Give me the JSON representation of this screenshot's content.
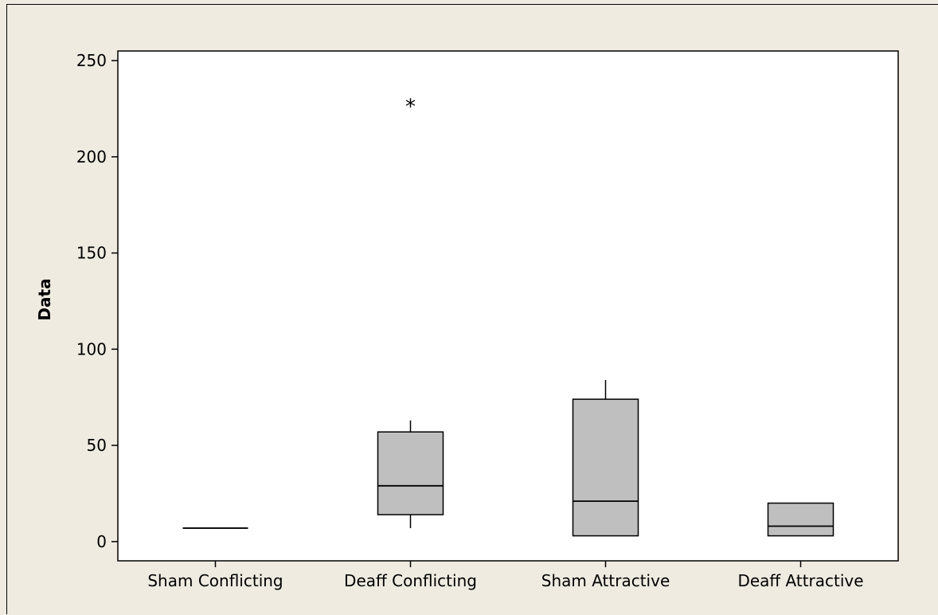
{
  "chart_data": {
    "type": "boxplot",
    "title": "",
    "xlabel": "",
    "ylabel": "Data",
    "ylim": [
      -10,
      255
    ],
    "yticks": [
      0,
      50,
      100,
      150,
      200,
      250
    ],
    "categories": [
      "Sham Conflicting",
      "Deaff Conflicting",
      "Sham Attractive",
      "Deaff Attractive"
    ],
    "boxes": [
      {
        "category": "Sham Conflicting",
        "whisker_low": 7,
        "q1": 7,
        "median": 7,
        "q3": 7,
        "whisker_high": 7,
        "outliers": []
      },
      {
        "category": "Deaff Conflicting",
        "whisker_low": 7,
        "q1": 14,
        "median": 29,
        "q3": 57,
        "whisker_high": 63,
        "outliers": [
          227
        ]
      },
      {
        "category": "Sham Attractive",
        "whisker_low": 3,
        "q1": 3,
        "median": 21,
        "q3": 74,
        "whisker_high": 84,
        "outliers": []
      },
      {
        "category": "Deaff Attractive",
        "whisker_low": 3,
        "q1": 3,
        "median": 8,
        "q3": 20,
        "whisker_high": 20,
        "outliers": []
      }
    ],
    "box_fill": "#bfbfbf",
    "plot_background": "#ffffff",
    "grid": false,
    "legend": "none"
  },
  "figure_background": "#efebe1"
}
